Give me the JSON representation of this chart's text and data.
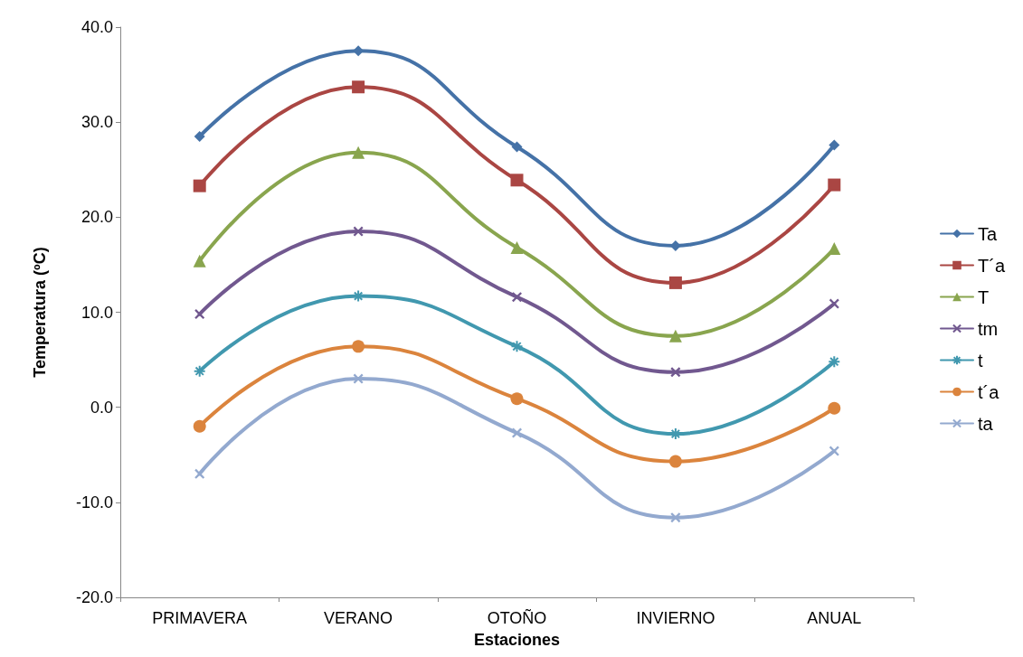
{
  "chart_data": {
    "type": "line",
    "xlabel": "Estaciones",
    "ylabel": "Temperatura (ºC)",
    "categories": [
      "PRIMAVERA",
      "VERANO",
      "OTOÑO",
      "INVIERNO",
      "ANUAL"
    ],
    "series": [
      {
        "name": "Ta",
        "color": "#4572a7",
        "marker": "diamond",
        "values": [
          28.5,
          37.5,
          27.4,
          17.0,
          27.6
        ]
      },
      {
        "name": "T´a",
        "color": "#aa4643",
        "marker": "square",
        "values": [
          23.3,
          33.7,
          23.9,
          13.1,
          23.4
        ]
      },
      {
        "name": "T",
        "color": "#89a54e",
        "marker": "triangle",
        "values": [
          15.4,
          26.8,
          16.8,
          7.5,
          16.7
        ]
      },
      {
        "name": "tm",
        "color": "#71588f",
        "marker": "cross",
        "values": [
          9.8,
          18.5,
          11.6,
          3.7,
          10.9
        ]
      },
      {
        "name": "t",
        "color": "#4198af",
        "marker": "star",
        "values": [
          3.8,
          11.7,
          6.4,
          -2.8,
          4.8
        ]
      },
      {
        "name": "t´a",
        "color": "#db843d",
        "marker": "circle",
        "values": [
          -2.0,
          6.4,
          0.9,
          -5.7,
          -0.1
        ]
      },
      {
        "name": "ta",
        "color": "#93a9cf",
        "marker": "cross",
        "values": [
          -7.0,
          3.0,
          -2.7,
          -11.6,
          -4.6
        ]
      }
    ],
    "ylim": [
      -20,
      40
    ],
    "yticks": [
      {
        "value": -20,
        "label": "-20.0"
      },
      {
        "value": -10,
        "label": "-10.0"
      },
      {
        "value": 0,
        "label": "0.0"
      },
      {
        "value": 10,
        "label": "10.0"
      },
      {
        "value": 20,
        "label": "20.0"
      },
      {
        "value": 30,
        "label": "30.0"
      },
      {
        "value": 40,
        "label": "40.0"
      }
    ],
    "grid": false,
    "legend": "right",
    "line_style": "solid"
  }
}
